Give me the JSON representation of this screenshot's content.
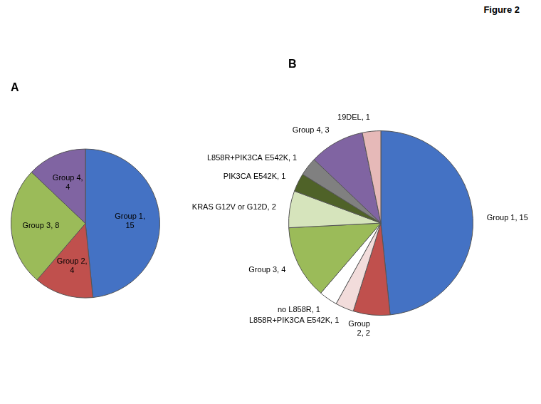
{
  "title": "Figure 2",
  "chart_data": [
    {
      "type": "pie",
      "title": "A",
      "categories": [
        "Group 1,\n15",
        "Group 2,\n4",
        "Group 3, 8",
        "Group 4,\n4"
      ],
      "values": [
        15,
        4,
        8,
        4
      ],
      "colors": [
        "#4472C4",
        "#C0504D",
        "#9BBB59",
        "#8064A2"
      ]
    },
    {
      "type": "pie",
      "title": "B",
      "categories": [
        "Group 1, 15",
        "Group\n2, 2",
        "L858R+PIK3CA E542K, 1",
        "no L858R, 1",
        "Group 3, 4",
        "KRAS G12V or G12D, 2",
        "PIK3CA E542K, 1",
        "L858R+PIK3CA E542K, 1",
        "Group 4, 3",
        "19DEL, 1"
      ],
      "values": [
        15,
        2,
        1,
        1,
        4,
        2,
        1,
        1,
        3,
        1
      ],
      "colors": [
        "#4472C4",
        "#C0504D",
        "#F2DCDB",
        "#FFFFFF",
        "#9BBB59",
        "#D6E4BC",
        "#4F6228",
        "#808080",
        "#8064A2",
        "#E6B9B8"
      ]
    }
  ]
}
